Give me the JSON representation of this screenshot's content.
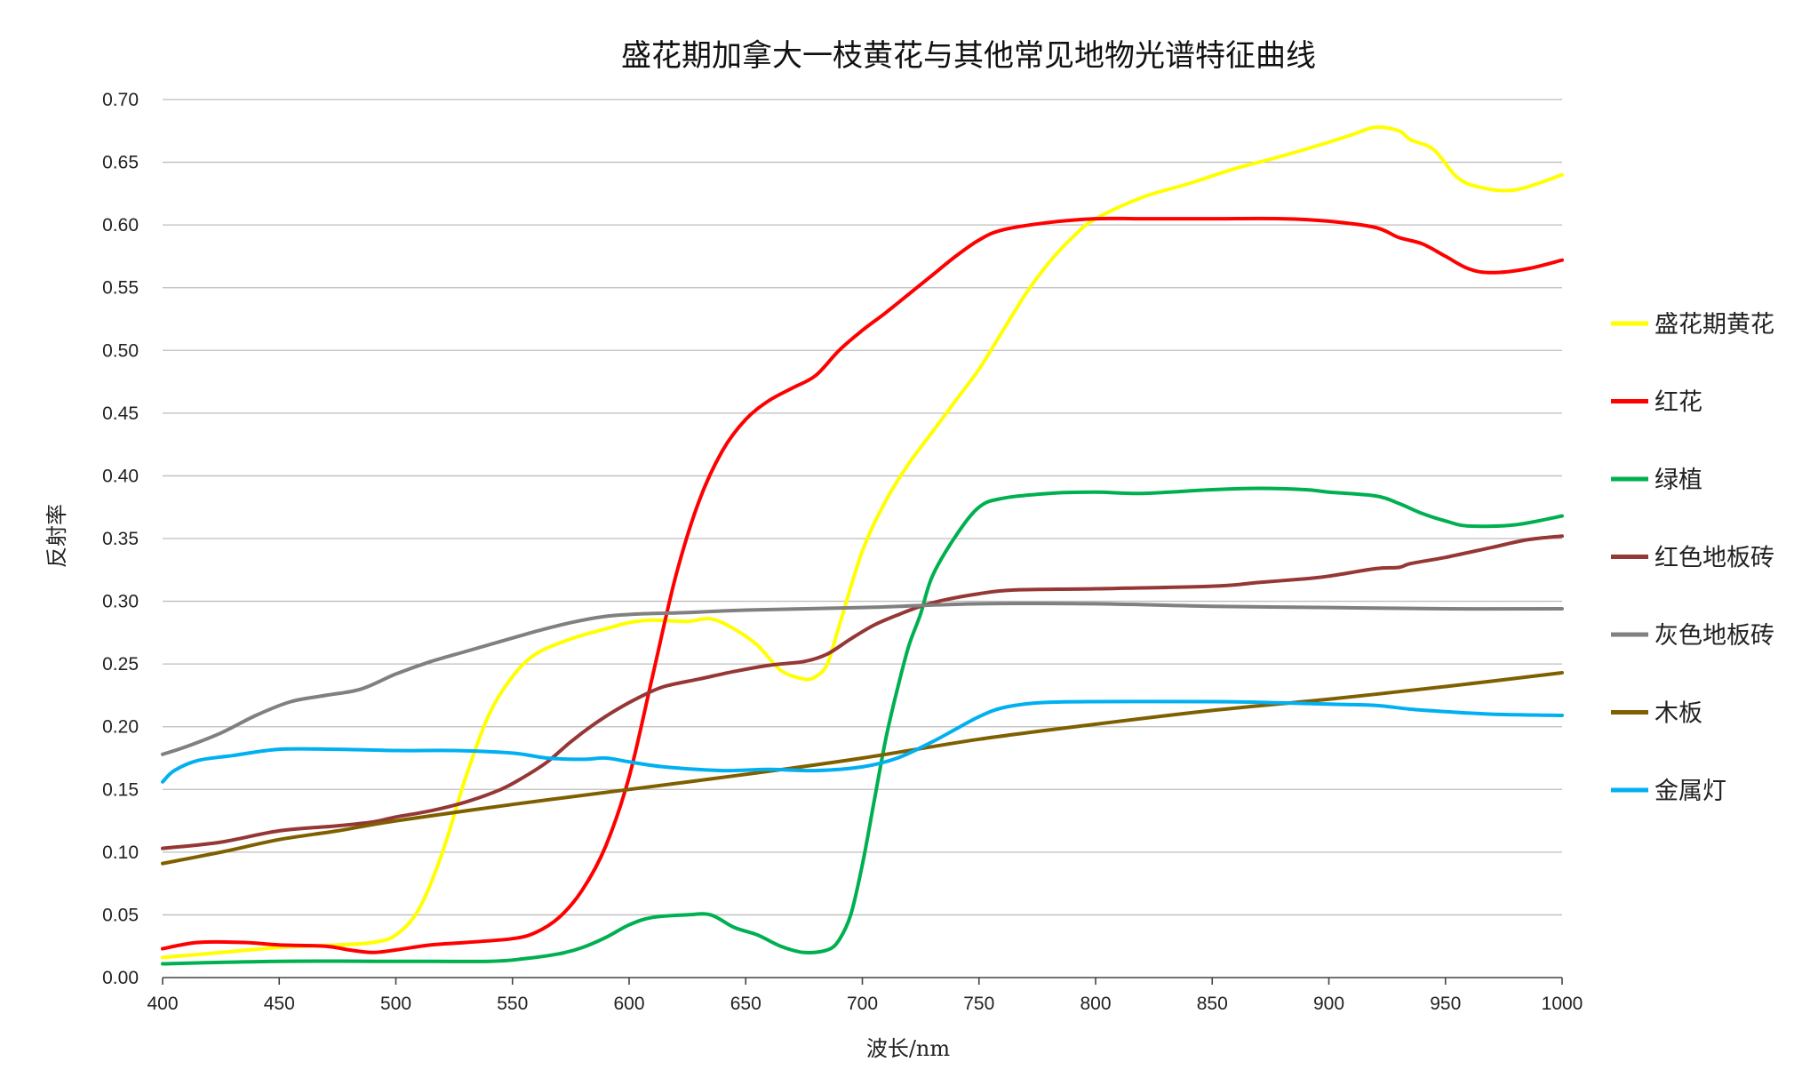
{
  "chart_data": {
    "type": "line",
    "title": "盛花期加拿大一枝黄花与其他常见地物光谱特征曲线",
    "xlabel": "波长/nm",
    "ylabel": "反射率",
    "xlim": [
      400,
      1000
    ],
    "ylim": [
      0,
      0.7
    ],
    "x_ticks": [
      "400",
      "450",
      "500",
      "550",
      "600",
      "650",
      "700",
      "750",
      "800",
      "850",
      "900",
      "950",
      "1000"
    ],
    "y_ticks": [
      "0.00",
      "0.05",
      "0.10",
      "0.15",
      "0.20",
      "0.25",
      "0.30",
      "0.35",
      "0.40",
      "0.45",
      "0.50",
      "0.55",
      "0.60",
      "0.65",
      "0.70"
    ],
    "grid": true,
    "legend_position": "right",
    "series": [
      {
        "name": "盛花期黄花",
        "color": "#ffff00",
        "points": [
          [
            400,
            0.016
          ],
          [
            425,
            0.02
          ],
          [
            450,
            0.024
          ],
          [
            475,
            0.026
          ],
          [
            490,
            0.028
          ],
          [
            500,
            0.034
          ],
          [
            510,
            0.055
          ],
          [
            520,
            0.1
          ],
          [
            530,
            0.16
          ],
          [
            540,
            0.21
          ],
          [
            550,
            0.24
          ],
          [
            560,
            0.258
          ],
          [
            575,
            0.27
          ],
          [
            590,
            0.278
          ],
          [
            600,
            0.283
          ],
          [
            610,
            0.285
          ],
          [
            625,
            0.284
          ],
          [
            635,
            0.286
          ],
          [
            645,
            0.278
          ],
          [
            655,
            0.265
          ],
          [
            665,
            0.245
          ],
          [
            675,
            0.238
          ],
          [
            680,
            0.24
          ],
          [
            685,
            0.25
          ],
          [
            690,
            0.28
          ],
          [
            700,
            0.34
          ],
          [
            710,
            0.38
          ],
          [
            720,
            0.41
          ],
          [
            730,
            0.435
          ],
          [
            740,
            0.46
          ],
          [
            750,
            0.485
          ],
          [
            760,
            0.515
          ],
          [
            770,
            0.545
          ],
          [
            780,
            0.57
          ],
          [
            790,
            0.59
          ],
          [
            800,
            0.605
          ],
          [
            820,
            0.622
          ],
          [
            840,
            0.633
          ],
          [
            860,
            0.645
          ],
          [
            880,
            0.655
          ],
          [
            900,
            0.666
          ],
          [
            910,
            0.672
          ],
          [
            920,
            0.678
          ],
          [
            930,
            0.675
          ],
          [
            935,
            0.668
          ],
          [
            945,
            0.66
          ],
          [
            955,
            0.638
          ],
          [
            965,
            0.63
          ],
          [
            980,
            0.628
          ],
          [
            1000,
            0.64
          ]
        ]
      },
      {
        "name": "红花",
        "color": "#ff0000",
        "points": [
          [
            400,
            0.023
          ],
          [
            415,
            0.028
          ],
          [
            435,
            0.028
          ],
          [
            450,
            0.026
          ],
          [
            470,
            0.025
          ],
          [
            480,
            0.022
          ],
          [
            490,
            0.02
          ],
          [
            500,
            0.022
          ],
          [
            515,
            0.026
          ],
          [
            530,
            0.028
          ],
          [
            550,
            0.031
          ],
          [
            560,
            0.036
          ],
          [
            570,
            0.048
          ],
          [
            580,
            0.07
          ],
          [
            590,
            0.105
          ],
          [
            600,
            0.16
          ],
          [
            610,
            0.24
          ],
          [
            620,
            0.32
          ],
          [
            630,
            0.38
          ],
          [
            640,
            0.42
          ],
          [
            650,
            0.445
          ],
          [
            660,
            0.46
          ],
          [
            670,
            0.47
          ],
          [
            680,
            0.48
          ],
          [
            690,
            0.5
          ],
          [
            700,
            0.516
          ],
          [
            710,
            0.53
          ],
          [
            720,
            0.545
          ],
          [
            730,
            0.56
          ],
          [
            740,
            0.575
          ],
          [
            750,
            0.588
          ],
          [
            760,
            0.596
          ],
          [
            780,
            0.602
          ],
          [
            800,
            0.605
          ],
          [
            820,
            0.605
          ],
          [
            850,
            0.605
          ],
          [
            880,
            0.605
          ],
          [
            900,
            0.603
          ],
          [
            920,
            0.598
          ],
          [
            930,
            0.59
          ],
          [
            940,
            0.585
          ],
          [
            950,
            0.575
          ],
          [
            960,
            0.565
          ],
          [
            970,
            0.562
          ],
          [
            985,
            0.565
          ],
          [
            1000,
            0.572
          ]
        ]
      },
      {
        "name": "绿植",
        "color": "#00b050",
        "points": [
          [
            400,
            0.011
          ],
          [
            450,
            0.013
          ],
          [
            500,
            0.013
          ],
          [
            540,
            0.013
          ],
          [
            555,
            0.015
          ],
          [
            570,
            0.019
          ],
          [
            580,
            0.024
          ],
          [
            590,
            0.032
          ],
          [
            600,
            0.042
          ],
          [
            610,
            0.048
          ],
          [
            625,
            0.05
          ],
          [
            635,
            0.05
          ],
          [
            645,
            0.04
          ],
          [
            655,
            0.034
          ],
          [
            665,
            0.025
          ],
          [
            675,
            0.02
          ],
          [
            685,
            0.022
          ],
          [
            690,
            0.03
          ],
          [
            695,
            0.05
          ],
          [
            700,
            0.09
          ],
          [
            705,
            0.14
          ],
          [
            710,
            0.19
          ],
          [
            715,
            0.23
          ],
          [
            720,
            0.265
          ],
          [
            725,
            0.29
          ],
          [
            730,
            0.32
          ],
          [
            740,
            0.352
          ],
          [
            750,
            0.375
          ],
          [
            760,
            0.382
          ],
          [
            780,
            0.386
          ],
          [
            800,
            0.387
          ],
          [
            820,
            0.386
          ],
          [
            850,
            0.389
          ],
          [
            870,
            0.39
          ],
          [
            890,
            0.389
          ],
          [
            900,
            0.387
          ],
          [
            920,
            0.384
          ],
          [
            930,
            0.378
          ],
          [
            940,
            0.37
          ],
          [
            950,
            0.364
          ],
          [
            960,
            0.36
          ],
          [
            980,
            0.361
          ],
          [
            1000,
            0.368
          ]
        ]
      },
      {
        "name": "红色地板砖",
        "color": "#953735",
        "points": [
          [
            400,
            0.103
          ],
          [
            425,
            0.108
          ],
          [
            450,
            0.117
          ],
          [
            475,
            0.121
          ],
          [
            490,
            0.124
          ],
          [
            500,
            0.128
          ],
          [
            515,
            0.133
          ],
          [
            530,
            0.14
          ],
          [
            545,
            0.15
          ],
          [
            555,
            0.16
          ],
          [
            565,
            0.172
          ],
          [
            575,
            0.188
          ],
          [
            585,
            0.202
          ],
          [
            595,
            0.214
          ],
          [
            605,
            0.224
          ],
          [
            615,
            0.232
          ],
          [
            630,
            0.238
          ],
          [
            645,
            0.244
          ],
          [
            660,
            0.249
          ],
          [
            675,
            0.252
          ],
          [
            685,
            0.258
          ],
          [
            695,
            0.27
          ],
          [
            705,
            0.281
          ],
          [
            715,
            0.289
          ],
          [
            725,
            0.296
          ],
          [
            735,
            0.301
          ],
          [
            750,
            0.306
          ],
          [
            765,
            0.309
          ],
          [
            800,
            0.31
          ],
          [
            850,
            0.312
          ],
          [
            870,
            0.315
          ],
          [
            890,
            0.318
          ],
          [
            900,
            0.32
          ],
          [
            920,
            0.326
          ],
          [
            930,
            0.327
          ],
          [
            935,
            0.33
          ],
          [
            950,
            0.335
          ],
          [
            970,
            0.343
          ],
          [
            985,
            0.349
          ],
          [
            1000,
            0.352
          ]
        ]
      },
      {
        "name": "灰色地板砖",
        "color": "#808080",
        "points": [
          [
            400,
            0.178
          ],
          [
            410,
            0.184
          ],
          [
            425,
            0.195
          ],
          [
            440,
            0.209
          ],
          [
            455,
            0.22
          ],
          [
            470,
            0.225
          ],
          [
            485,
            0.23
          ],
          [
            500,
            0.242
          ],
          [
            515,
            0.252
          ],
          [
            530,
            0.26
          ],
          [
            545,
            0.268
          ],
          [
            560,
            0.276
          ],
          [
            575,
            0.283
          ],
          [
            590,
            0.288
          ],
          [
            605,
            0.29
          ],
          [
            625,
            0.291
          ],
          [
            650,
            0.293
          ],
          [
            700,
            0.295
          ],
          [
            750,
            0.298
          ],
          [
            800,
            0.298
          ],
          [
            850,
            0.296
          ],
          [
            900,
            0.295
          ],
          [
            950,
            0.294
          ],
          [
            1000,
            0.294
          ]
        ]
      },
      {
        "name": "木板",
        "color": "#7f6000",
        "points": [
          [
            400,
            0.091
          ],
          [
            425,
            0.1
          ],
          [
            450,
            0.11
          ],
          [
            475,
            0.117
          ],
          [
            500,
            0.125
          ],
          [
            550,
            0.138
          ],
          [
            600,
            0.15
          ],
          [
            650,
            0.162
          ],
          [
            700,
            0.175
          ],
          [
            750,
            0.19
          ],
          [
            800,
            0.202
          ],
          [
            850,
            0.213
          ],
          [
            900,
            0.222
          ],
          [
            950,
            0.232
          ],
          [
            1000,
            0.243
          ]
        ]
      },
      {
        "name": "金属灯",
        "color": "#00b0f0",
        "points": [
          [
            400,
            0.156
          ],
          [
            405,
            0.165
          ],
          [
            415,
            0.173
          ],
          [
            430,
            0.177
          ],
          [
            450,
            0.182
          ],
          [
            475,
            0.182
          ],
          [
            500,
            0.181
          ],
          [
            525,
            0.181
          ],
          [
            550,
            0.179
          ],
          [
            565,
            0.175
          ],
          [
            580,
            0.174
          ],
          [
            590,
            0.175
          ],
          [
            600,
            0.172
          ],
          [
            615,
            0.168
          ],
          [
            640,
            0.165
          ],
          [
            660,
            0.166
          ],
          [
            680,
            0.165
          ],
          [
            700,
            0.168
          ],
          [
            715,
            0.175
          ],
          [
            730,
            0.188
          ],
          [
            740,
            0.198
          ],
          [
            750,
            0.208
          ],
          [
            760,
            0.215
          ],
          [
            775,
            0.219
          ],
          [
            800,
            0.22
          ],
          [
            850,
            0.22
          ],
          [
            880,
            0.219
          ],
          [
            900,
            0.218
          ],
          [
            920,
            0.217
          ],
          [
            935,
            0.214
          ],
          [
            950,
            0.212
          ],
          [
            970,
            0.21
          ],
          [
            1000,
            0.209
          ]
        ]
      }
    ]
  }
}
